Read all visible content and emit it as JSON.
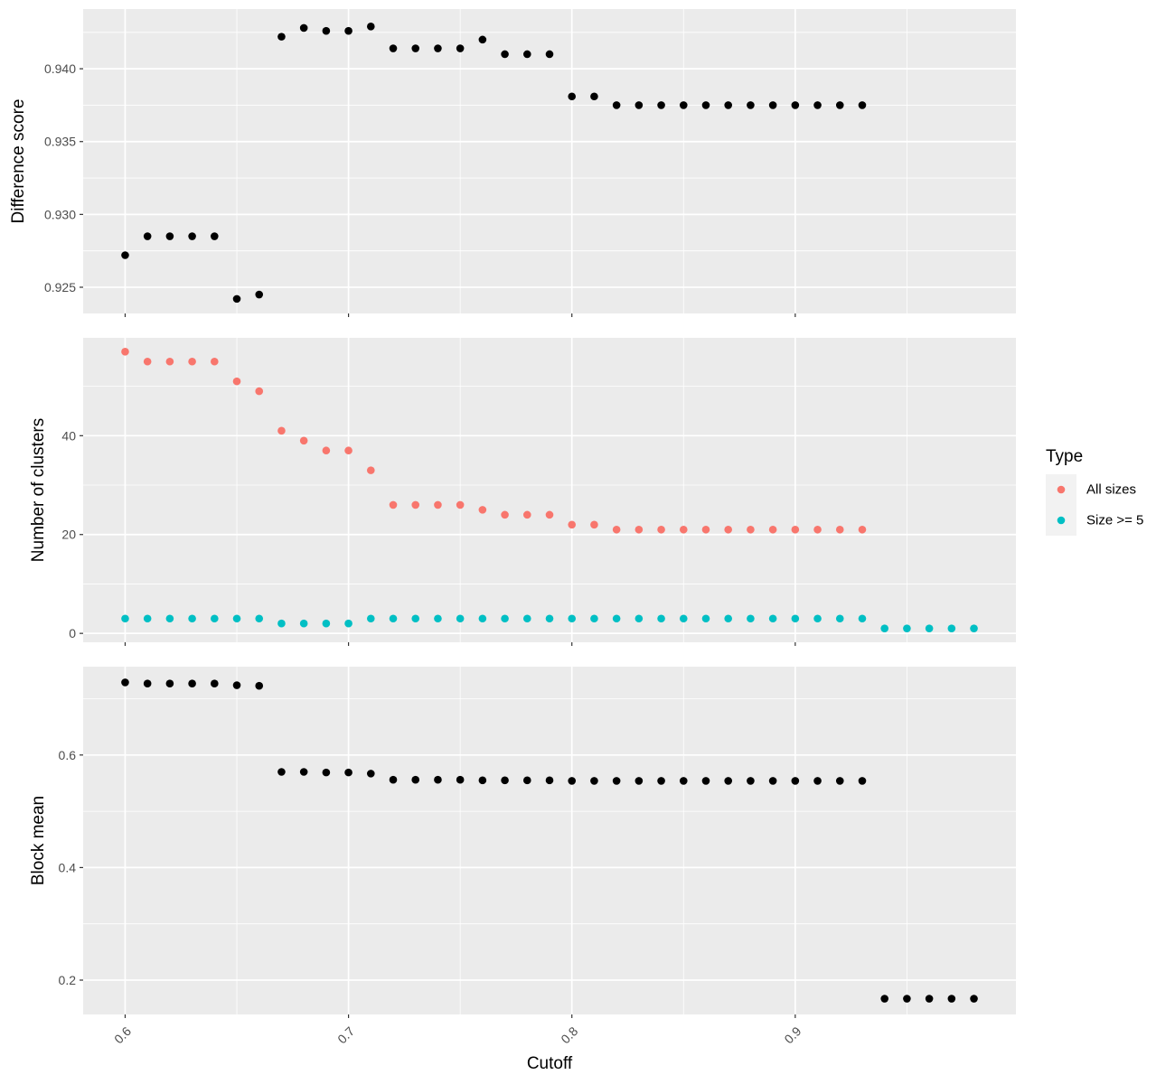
{
  "chart_data": {
    "type": "scatter",
    "xlabel": "Cutoff",
    "x_ticks": [
      "0.6",
      "0.7",
      "0.8",
      "0.9"
    ],
    "xlim": [
      0.5812,
      0.9988
    ],
    "legend": {
      "title": "Type",
      "placement": "right",
      "entries": [
        {
          "label": "All sizes",
          "color": "#F8766D"
        },
        {
          "label": "Size >= 5",
          "color": "#00BFC4"
        }
      ]
    },
    "panels": [
      {
        "ylabel": "Difference score",
        "ylim": [
          0.9232,
          0.9441
        ],
        "y_ticks": [
          "0.925",
          "0.930",
          "0.935",
          "0.940"
        ],
        "series": [
          {
            "color": "#000000",
            "points": [
              [
                0.6,
                0.9272
              ],
              [
                0.61,
                0.9285
              ],
              [
                0.62,
                0.9285
              ],
              [
                0.63,
                0.9285
              ],
              [
                0.64,
                0.9285
              ],
              [
                0.65,
                0.9242
              ],
              [
                0.66,
                0.9245
              ],
              [
                0.67,
                0.9422
              ],
              [
                0.68,
                0.9428
              ],
              [
                0.69,
                0.9426
              ],
              [
                0.7,
                0.9426
              ],
              [
                0.71,
                0.9429
              ],
              [
                0.72,
                0.9414
              ],
              [
                0.73,
                0.9414
              ],
              [
                0.74,
                0.9414
              ],
              [
                0.75,
                0.9414
              ],
              [
                0.76,
                0.942
              ],
              [
                0.77,
                0.941
              ],
              [
                0.78,
                0.941
              ],
              [
                0.79,
                0.941
              ],
              [
                0.8,
                0.9381
              ],
              [
                0.81,
                0.9381
              ],
              [
                0.82,
                0.9375
              ],
              [
                0.83,
                0.9375
              ],
              [
                0.84,
                0.9375
              ],
              [
                0.85,
                0.9375
              ],
              [
                0.86,
                0.9375
              ],
              [
                0.87,
                0.9375
              ],
              [
                0.88,
                0.9375
              ],
              [
                0.89,
                0.9375
              ],
              [
                0.9,
                0.9375
              ],
              [
                0.91,
                0.9375
              ],
              [
                0.92,
                0.9375
              ],
              [
                0.93,
                0.9375
              ]
            ]
          }
        ]
      },
      {
        "ylabel": "Number of clusters",
        "ylim": [
          -1.8,
          59.8
        ],
        "y_ticks": [
          "0",
          "20",
          "40"
        ],
        "series": [
          {
            "name": "All sizes",
            "color": "#F8766D",
            "points": [
              [
                0.6,
                57
              ],
              [
                0.61,
                55
              ],
              [
                0.62,
                55
              ],
              [
                0.63,
                55
              ],
              [
                0.64,
                55
              ],
              [
                0.65,
                51
              ],
              [
                0.66,
                49
              ],
              [
                0.67,
                41
              ],
              [
                0.68,
                39
              ],
              [
                0.69,
                37
              ],
              [
                0.7,
                37
              ],
              [
                0.71,
                33
              ],
              [
                0.72,
                26
              ],
              [
                0.73,
                26
              ],
              [
                0.74,
                26
              ],
              [
                0.75,
                26
              ],
              [
                0.76,
                25
              ],
              [
                0.77,
                24
              ],
              [
                0.78,
                24
              ],
              [
                0.79,
                24
              ],
              [
                0.8,
                22
              ],
              [
                0.81,
                22
              ],
              [
                0.82,
                21
              ],
              [
                0.83,
                21
              ],
              [
                0.84,
                21
              ],
              [
                0.85,
                21
              ],
              [
                0.86,
                21
              ],
              [
                0.87,
                21
              ],
              [
                0.88,
                21
              ],
              [
                0.89,
                21
              ],
              [
                0.9,
                21
              ],
              [
                0.91,
                21
              ],
              [
                0.92,
                21
              ],
              [
                0.93,
                21
              ]
            ]
          },
          {
            "name": "Size >= 5",
            "color": "#00BFC4",
            "points": [
              [
                0.6,
                3
              ],
              [
                0.61,
                3
              ],
              [
                0.62,
                3
              ],
              [
                0.63,
                3
              ],
              [
                0.64,
                3
              ],
              [
                0.65,
                3
              ],
              [
                0.66,
                3
              ],
              [
                0.67,
                2
              ],
              [
                0.68,
                2
              ],
              [
                0.69,
                2
              ],
              [
                0.7,
                2
              ],
              [
                0.71,
                3
              ],
              [
                0.72,
                3
              ],
              [
                0.73,
                3
              ],
              [
                0.74,
                3
              ],
              [
                0.75,
                3
              ],
              [
                0.76,
                3
              ],
              [
                0.77,
                3
              ],
              [
                0.78,
                3
              ],
              [
                0.79,
                3
              ],
              [
                0.8,
                3
              ],
              [
                0.81,
                3
              ],
              [
                0.82,
                3
              ],
              [
                0.83,
                3
              ],
              [
                0.84,
                3
              ],
              [
                0.85,
                3
              ],
              [
                0.86,
                3
              ],
              [
                0.87,
                3
              ],
              [
                0.88,
                3
              ],
              [
                0.89,
                3
              ],
              [
                0.9,
                3
              ],
              [
                0.91,
                3
              ],
              [
                0.92,
                3
              ],
              [
                0.93,
                3
              ],
              [
                0.94,
                1
              ],
              [
                0.95,
                1
              ],
              [
                0.96,
                1
              ],
              [
                0.97,
                1
              ],
              [
                0.98,
                1
              ]
            ]
          }
        ]
      },
      {
        "ylabel": "Block mean",
        "ylim": [
          0.139,
          0.757
        ],
        "y_ticks": [
          "0.2",
          "0.4",
          "0.6"
        ],
        "series": [
          {
            "color": "#000000",
            "points": [
              [
                0.6,
                0.729
              ],
              [
                0.61,
                0.727
              ],
              [
                0.62,
                0.727
              ],
              [
                0.63,
                0.727
              ],
              [
                0.64,
                0.727
              ],
              [
                0.65,
                0.724
              ],
              [
                0.66,
                0.723
              ],
              [
                0.67,
                0.57
              ],
              [
                0.68,
                0.57
              ],
              [
                0.69,
                0.569
              ],
              [
                0.7,
                0.569
              ],
              [
                0.71,
                0.567
              ],
              [
                0.72,
                0.556
              ],
              [
                0.73,
                0.556
              ],
              [
                0.74,
                0.556
              ],
              [
                0.75,
                0.556
              ],
              [
                0.76,
                0.555
              ],
              [
                0.77,
                0.555
              ],
              [
                0.78,
                0.555
              ],
              [
                0.79,
                0.555
              ],
              [
                0.8,
                0.554
              ],
              [
                0.81,
                0.554
              ],
              [
                0.82,
                0.554
              ],
              [
                0.83,
                0.554
              ],
              [
                0.84,
                0.554
              ],
              [
                0.85,
                0.554
              ],
              [
                0.86,
                0.554
              ],
              [
                0.87,
                0.554
              ],
              [
                0.88,
                0.554
              ],
              [
                0.89,
                0.554
              ],
              [
                0.9,
                0.554
              ],
              [
                0.91,
                0.554
              ],
              [
                0.92,
                0.554
              ],
              [
                0.93,
                0.554
              ],
              [
                0.94,
                0.167
              ],
              [
                0.95,
                0.167
              ],
              [
                0.96,
                0.167
              ],
              [
                0.97,
                0.167
              ],
              [
                0.98,
                0.167
              ]
            ]
          }
        ]
      }
    ]
  }
}
